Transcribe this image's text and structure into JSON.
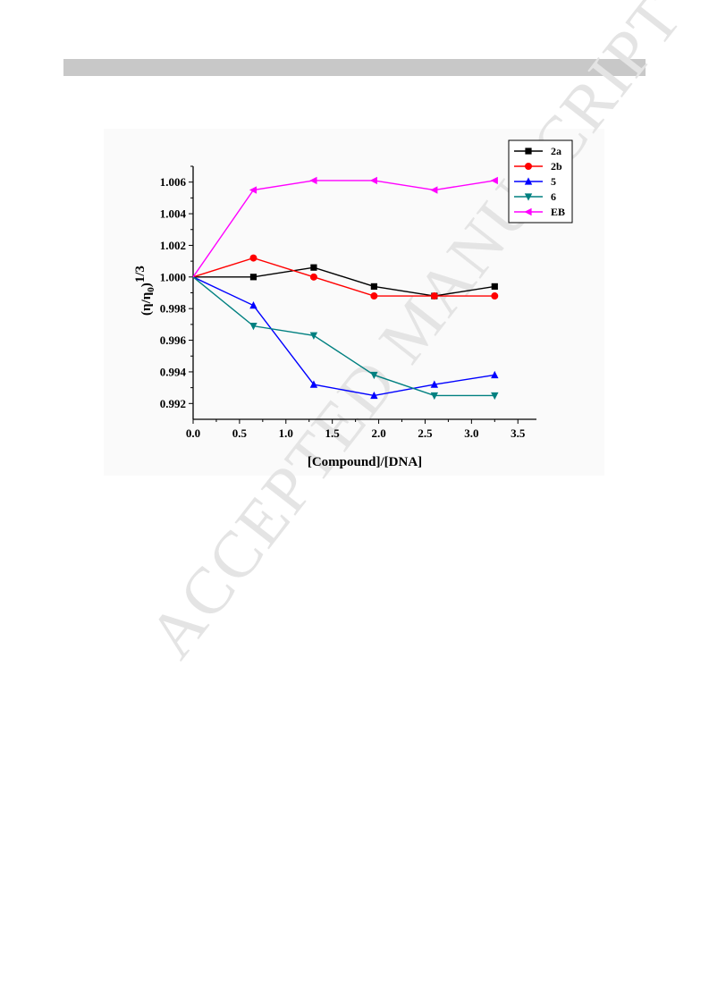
{
  "page": {
    "watermark": "ACCEPTED MANUSCRIPT"
  },
  "chart_data": {
    "type": "line",
    "title": "",
    "xlabel": "[Compound]/[DNA]",
    "ylabel_main": "(η/η",
    "ylabel_sub": "0",
    "ylabel_close": ")",
    "ylabel_exp": "1/3",
    "xlim": [
      0.0,
      3.7
    ],
    "ylim": [
      0.991,
      1.007
    ],
    "xticks": [
      0.0,
      0.5,
      1.0,
      1.5,
      2.0,
      2.5,
      3.0,
      3.5
    ],
    "xtick_labels": [
      "0.0",
      "0.5",
      "1.0",
      "1.5",
      "2.0",
      "2.5",
      "3.0",
      "3.5"
    ],
    "yticks": [
      0.992,
      0.994,
      0.996,
      0.998,
      1.0,
      1.002,
      1.004,
      1.006
    ],
    "ytick_labels": [
      "0.992",
      "0.994",
      "0.996",
      "0.998",
      "1.000",
      "1.002",
      "1.004",
      "1.006"
    ],
    "grid": false,
    "legend_position": "top-right",
    "x": [
      0.0,
      0.65,
      1.3,
      1.95,
      2.6,
      3.25
    ],
    "series": [
      {
        "name": "2a",
        "color": "#000000",
        "marker": "square",
        "values": [
          1.0,
          1.0,
          1.0006,
          0.9994,
          0.9988,
          0.9994
        ]
      },
      {
        "name": "2b",
        "color": "#ff0000",
        "marker": "circle",
        "values": [
          1.0,
          1.0012,
          1.0,
          0.9988,
          0.9988,
          0.9988
        ]
      },
      {
        "name": "5",
        "color": "#0000ff",
        "marker": "triangle-up",
        "values": [
          1.0,
          0.9982,
          0.9932,
          0.9925,
          0.9932,
          0.9938
        ]
      },
      {
        "name": "6",
        "color": "#008080",
        "marker": "triangle-down",
        "values": [
          1.0,
          0.9969,
          0.9963,
          0.9938,
          0.9925,
          0.9925
        ]
      },
      {
        "name": "EB",
        "color": "#ff00ff",
        "marker": "triangle-left",
        "values": [
          1.0,
          1.0055,
          1.0061,
          1.0061,
          1.0055,
          1.0061
        ]
      }
    ]
  }
}
